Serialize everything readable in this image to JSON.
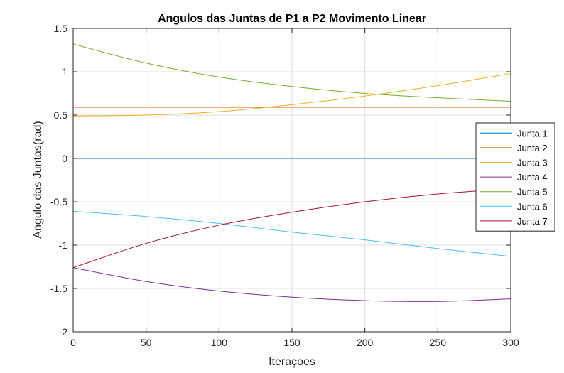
{
  "chart_data": {
    "type": "line",
    "title": "Angulos das Juntas de P1 a P2 Movimento Linear",
    "xlabel": "Iteraçoes",
    "ylabel": "Angulo das Juntas(rad)",
    "xlim": [
      0,
      300
    ],
    "ylim": [
      -2,
      1.5
    ],
    "xticks": [
      0,
      50,
      100,
      150,
      200,
      250,
      300
    ],
    "xtick_labels": [
      "0",
      "50",
      "100",
      "150",
      "200",
      "250",
      "300"
    ],
    "yticks": [
      -2,
      -1.5,
      -1,
      -0.5,
      0,
      0.5,
      1,
      1.5
    ],
    "ytick_labels": [
      "-2",
      "-1.5",
      "-1",
      "-0.5",
      "0",
      "0.5",
      "1",
      "1.5"
    ],
    "grid": true,
    "legend_position": "right",
    "x": [
      0,
      50,
      100,
      150,
      200,
      250,
      300
    ],
    "series": [
      {
        "name": "Junta 1",
        "color": "#0072BD",
        "values": [
          0,
          0,
          0,
          0,
          0,
          0,
          0
        ]
      },
      {
        "name": "Junta 2",
        "color": "#D95319",
        "values": [
          0.59,
          0.59,
          0.59,
          0.59,
          0.59,
          0.59,
          0.59
        ]
      },
      {
        "name": "Junta 3",
        "color": "#EDB120",
        "values": [
          0.49,
          0.5,
          0.54,
          0.62,
          0.72,
          0.84,
          0.98
        ]
      },
      {
        "name": "Junta 4",
        "color": "#7E2F8E",
        "values": [
          -1.26,
          -1.42,
          -1.53,
          -1.6,
          -1.64,
          -1.65,
          -1.62
        ]
      },
      {
        "name": "Junta 5",
        "color": "#77AC30",
        "values": [
          1.32,
          1.1,
          0.94,
          0.83,
          0.75,
          0.7,
          0.66
        ]
      },
      {
        "name": "Junta 6",
        "color": "#4DBEEE",
        "values": [
          -0.61,
          -0.67,
          -0.75,
          -0.85,
          -0.94,
          -1.04,
          -1.13
        ]
      },
      {
        "name": "Junta 7",
        "color": "#A2142F",
        "values": [
          -1.26,
          -0.98,
          -0.77,
          -0.62,
          -0.5,
          -0.41,
          -0.35
        ]
      }
    ]
  }
}
